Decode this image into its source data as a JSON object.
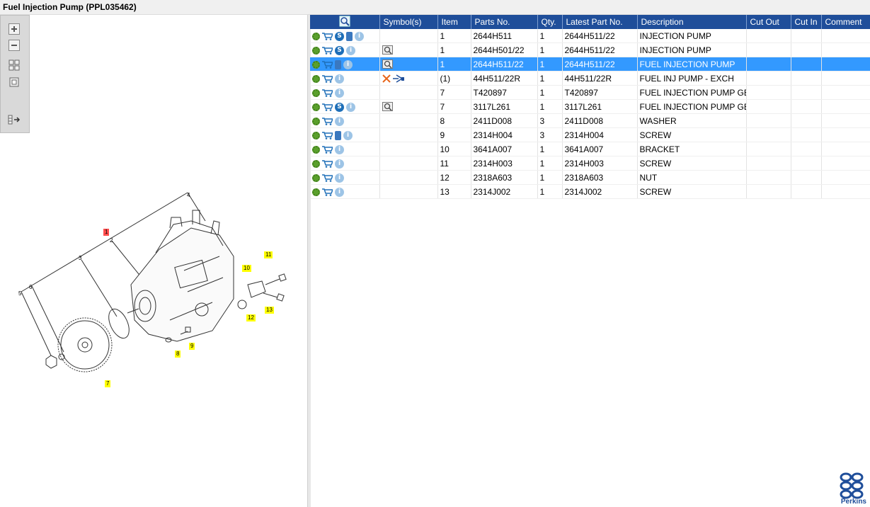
{
  "window": {
    "title": "Fuel Injection Pump (PPL035462)"
  },
  "toolbar": {
    "buttons": [
      "zoom-in-icon",
      "zoom-out-icon",
      "fit-all-icon",
      "fit-window-icon",
      "hotspot-list-icon"
    ]
  },
  "diagram": {
    "callouts": [
      {
        "label": "1",
        "color": "red"
      },
      {
        "label": "7",
        "color": "yellow"
      },
      {
        "label": "8",
        "color": "yellow"
      },
      {
        "label": "9",
        "color": "yellow"
      },
      {
        "label": "10",
        "color": "yellow"
      },
      {
        "label": "11",
        "color": "yellow"
      },
      {
        "label": "12",
        "color": "yellow"
      },
      {
        "label": "13",
        "color": "yellow"
      }
    ],
    "labels": [
      "2",
      "3",
      "4",
      "5",
      "6"
    ]
  },
  "table": {
    "headers": [
      "",
      "Symbol(s)",
      "Item",
      "Parts No.",
      "Qty.",
      "Latest Part No.",
      "Description",
      "Cut Out",
      "Cut In",
      "Comment"
    ],
    "rows": [
      {
        "icons": [
          "gears",
          "cart",
          "s",
          "book",
          "i"
        ],
        "symbols": [],
        "item": "1",
        "part": "2644H511",
        "qty": "1",
        "latest": "2644H511/22",
        "desc": "INJECTION PUMP",
        "cutout": "",
        "cutin": "",
        "comment": ""
      },
      {
        "icons": [
          "gear",
          "cart",
          "s",
          "i"
        ],
        "symbols": [
          "magnifier"
        ],
        "item": "1",
        "part": "2644H501/22",
        "qty": "1",
        "latest": "2644H511/22",
        "desc": "INJECTION PUMP",
        "cutout": "",
        "cutin": "",
        "comment": ""
      },
      {
        "icons": [
          "gear",
          "cart",
          "book",
          "i"
        ],
        "symbols": [
          "magnifier"
        ],
        "item": "1",
        "part": "2644H511/22",
        "qty": "1",
        "latest": "2644H511/22",
        "desc": "FUEL INJECTION PUMP",
        "cutout": "",
        "cutin": "",
        "comment": "",
        "selected": true
      },
      {
        "icons": [
          "gear",
          "cart",
          "i"
        ],
        "symbols": [
          "cross",
          "exchange"
        ],
        "item": "(1)",
        "part": "44H511/22R",
        "qty": "1",
        "latest": "44H511/22R",
        "desc": "FUEL INJ PUMP - EXCH",
        "cutout": "",
        "cutin": "",
        "comment": ""
      },
      {
        "icons": [
          "gear",
          "cart",
          "i"
        ],
        "symbols": [],
        "item": "7",
        "part": "T420897",
        "qty": "1",
        "latest": "T420897",
        "desc": "FUEL INJECTION PUMP GEAR",
        "cutout": "",
        "cutin": "",
        "comment": ""
      },
      {
        "icons": [
          "gear",
          "cart",
          "s",
          "i"
        ],
        "symbols": [
          "magnifier"
        ],
        "item": "7",
        "part": "3117L261",
        "qty": "1",
        "latest": "3117L261",
        "desc": "FUEL INJECTION PUMP GEAR",
        "cutout": "",
        "cutin": "",
        "comment": ""
      },
      {
        "icons": [
          "gear",
          "cart",
          "i"
        ],
        "symbols": [],
        "item": "8",
        "part": "2411D008",
        "qty": "3",
        "latest": "2411D008",
        "desc": "WASHER",
        "cutout": "",
        "cutin": "",
        "comment": ""
      },
      {
        "icons": [
          "gear",
          "cart",
          "book",
          "i"
        ],
        "symbols": [],
        "item": "9",
        "part": "2314H004",
        "qty": "3",
        "latest": "2314H004",
        "desc": "SCREW",
        "cutout": "",
        "cutin": "",
        "comment": ""
      },
      {
        "icons": [
          "gear",
          "cart",
          "i"
        ],
        "symbols": [],
        "item": "10",
        "part": "3641A007",
        "qty": "1",
        "latest": "3641A007",
        "desc": "BRACKET",
        "cutout": "",
        "cutin": "",
        "comment": ""
      },
      {
        "icons": [
          "gear",
          "cart",
          "i"
        ],
        "symbols": [],
        "item": "11",
        "part": "2314H003",
        "qty": "1",
        "latest": "2314H003",
        "desc": "SCREW",
        "cutout": "",
        "cutin": "",
        "comment": ""
      },
      {
        "icons": [
          "gear",
          "cart",
          "i"
        ],
        "symbols": [],
        "item": "12",
        "part": "2318A603",
        "qty": "1",
        "latest": "2318A603",
        "desc": "NUT",
        "cutout": "",
        "cutin": "",
        "comment": ""
      },
      {
        "icons": [
          "gear",
          "cart",
          "i"
        ],
        "symbols": [],
        "item": "13",
        "part": "2314J002",
        "qty": "1",
        "latest": "2314J002",
        "desc": "SCREW",
        "cutout": "",
        "cutin": "",
        "comment": ""
      }
    ]
  },
  "brand": {
    "name": "Perkins",
    "color": "#1f4e9a"
  },
  "colors": {
    "header": "#1f4e9a",
    "selected": "#3399ff",
    "callout": "#ffff00",
    "callout_main": "#ff4d4d"
  }
}
